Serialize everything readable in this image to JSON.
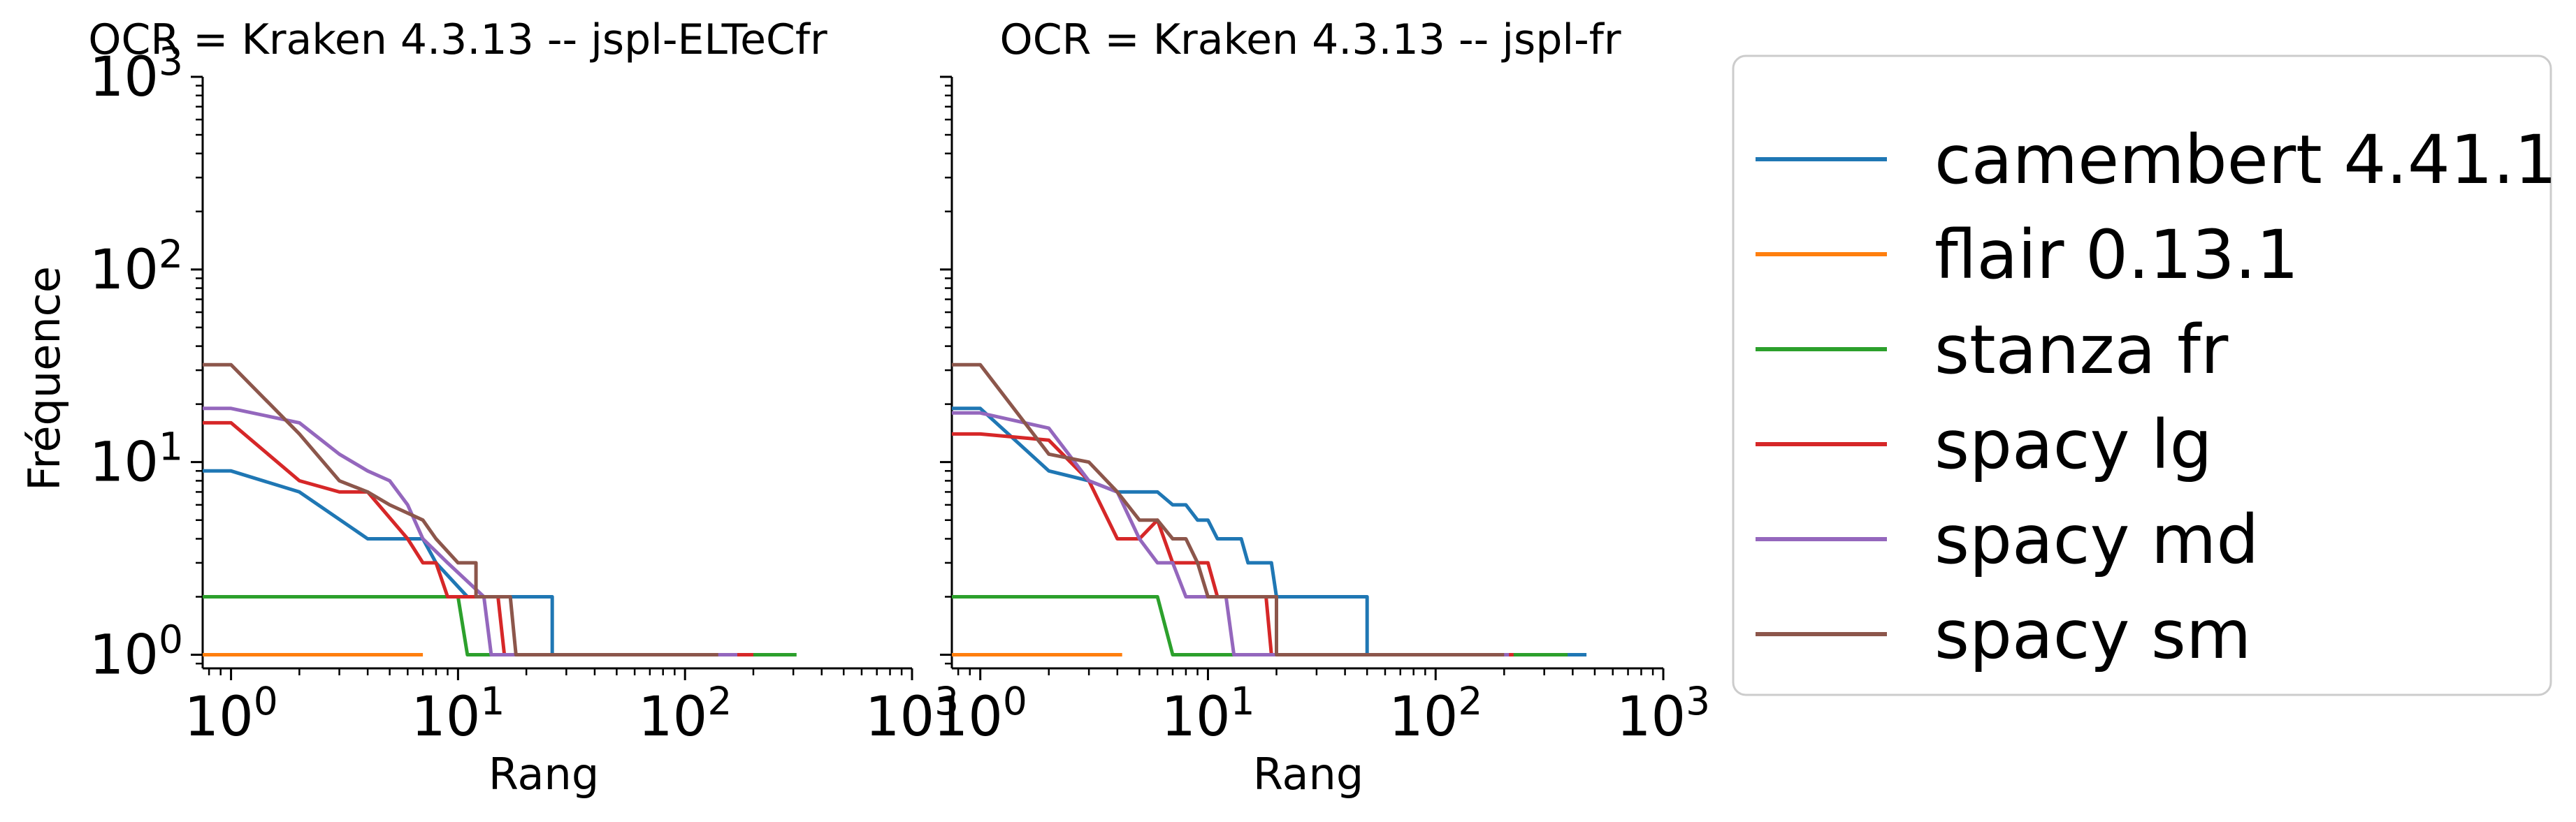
{
  "chart_data": [
    {
      "type": "line",
      "title": "OCR = Kraken 4.3.13 -- jspl-ELTeCfr",
      "xlabel": "Rang",
      "ylabel": "Fréquence",
      "xscale": "log",
      "yscale": "log",
      "xlim": [
        0.75,
        1000
      ],
      "ylim": [
        0.85,
        1000
      ],
      "x_ticks": [
        "10^0",
        "10^1",
        "10^2",
        "10^3"
      ],
      "y_ticks": [
        "10^0",
        "10^1",
        "10^2",
        "10^3"
      ],
      "grid": false,
      "series": [
        {
          "name": "camembert 4.41.1",
          "points": [
            [
              0.75,
              9
            ],
            [
              1,
              9
            ],
            [
              2,
              7
            ],
            [
              4,
              4
            ],
            [
              7,
              4
            ],
            [
              8,
              3
            ],
            [
              11,
              2
            ],
            [
              26,
              2
            ],
            [
              26,
              1
            ],
            [
              190,
              1
            ]
          ]
        },
        {
          "name": "flair 0.13.1",
          "points": [
            [
              0.75,
              1
            ],
            [
              7,
              1
            ]
          ]
        },
        {
          "name": "stanza fr",
          "points": [
            [
              0.75,
              2
            ],
            [
              10,
              2
            ],
            [
              11,
              1
            ],
            [
              310,
              1
            ]
          ]
        },
        {
          "name": "spacy lg",
          "points": [
            [
              0.75,
              16
            ],
            [
              1,
              16
            ],
            [
              2,
              8
            ],
            [
              3,
              7
            ],
            [
              4,
              7
            ],
            [
              6,
              4
            ],
            [
              7,
              3
            ],
            [
              8,
              3
            ],
            [
              9,
              2
            ],
            [
              15,
              2
            ],
            [
              16,
              1
            ],
            [
              200,
              1
            ]
          ]
        },
        {
          "name": "spacy md",
          "points": [
            [
              0.75,
              19
            ],
            [
              1,
              19
            ],
            [
              2,
              16
            ],
            [
              3,
              11
            ],
            [
              4,
              9
            ],
            [
              5,
              8
            ],
            [
              6,
              6
            ],
            [
              7,
              4
            ],
            [
              9,
              3
            ],
            [
              13,
              2
            ],
            [
              14,
              1
            ],
            [
              170,
              1
            ]
          ]
        },
        {
          "name": "spacy sm",
          "points": [
            [
              0.75,
              32
            ],
            [
              1,
              32
            ],
            [
              2,
              14
            ],
            [
              3,
              8
            ],
            [
              4,
              7
            ],
            [
              5,
              6
            ],
            [
              7,
              5
            ],
            [
              8,
              4
            ],
            [
              10,
              3
            ],
            [
              12,
              3
            ],
            [
              12,
              2
            ],
            [
              17,
              2
            ],
            [
              18,
              1
            ],
            [
              140,
              1
            ]
          ]
        }
      ]
    },
    {
      "type": "line",
      "title": "OCR = Kraken 4.3.13 -- jspl-fr",
      "xlabel": "Rang",
      "ylabel": "",
      "xscale": "log",
      "yscale": "log",
      "xlim": [
        0.75,
        1000
      ],
      "ylim": [
        0.85,
        1000
      ],
      "x_ticks": [
        "10^0",
        "10^1",
        "10^2",
        "10^3"
      ],
      "y_ticks": [],
      "grid": false,
      "series": [
        {
          "name": "camembert 4.41.1",
          "points": [
            [
              0.75,
              19
            ],
            [
              1,
              19
            ],
            [
              2,
              9
            ],
            [
              3,
              8
            ],
            [
              4,
              7
            ],
            [
              6,
              7
            ],
            [
              7,
              6
            ],
            [
              8,
              6
            ],
            [
              9,
              5
            ],
            [
              10,
              5
            ],
            [
              11,
              4
            ],
            [
              14,
              4
            ],
            [
              15,
              3
            ],
            [
              19,
              3
            ],
            [
              20,
              2
            ],
            [
              50,
              2
            ],
            [
              50,
              1
            ],
            [
              460,
              1
            ]
          ]
        },
        {
          "name": "flair 0.13.1",
          "points": [
            [
              0.75,
              1
            ],
            [
              4.2,
              1
            ]
          ]
        },
        {
          "name": "stanza fr",
          "points": [
            [
              0.75,
              2
            ],
            [
              6,
              2
            ],
            [
              7,
              1
            ],
            [
              380,
              1
            ]
          ]
        },
        {
          "name": "spacy lg",
          "points": [
            [
              0.75,
              14
            ],
            [
              1,
              14
            ],
            [
              2,
              13
            ],
            [
              3,
              8
            ],
            [
              4,
              4
            ],
            [
              5,
              4
            ],
            [
              6,
              5
            ],
            [
              7,
              3
            ],
            [
              10,
              3
            ],
            [
              11,
              2
            ],
            [
              18,
              2
            ],
            [
              19,
              1
            ],
            [
              220,
              1
            ]
          ]
        },
        {
          "name": "spacy md",
          "points": [
            [
              0.75,
              18
            ],
            [
              1,
              18
            ],
            [
              2,
              15
            ],
            [
              3,
              8
            ],
            [
              4,
              7
            ],
            [
              5,
              4
            ],
            [
              6,
              3
            ],
            [
              7,
              3
            ],
            [
              8,
              2
            ],
            [
              12,
              2
            ],
            [
              13,
              1
            ],
            [
              210,
              1
            ]
          ]
        },
        {
          "name": "spacy sm",
          "points": [
            [
              0.75,
              32
            ],
            [
              1,
              32
            ],
            [
              2,
              11
            ],
            [
              3,
              10
            ],
            [
              4,
              7
            ],
            [
              5,
              5
            ],
            [
              6,
              5
            ],
            [
              7,
              4
            ],
            [
              8,
              4
            ],
            [
              9,
              3
            ],
            [
              10,
              2
            ],
            [
              20,
              2
            ],
            [
              20,
              1
            ],
            [
              200,
              1
            ]
          ]
        }
      ]
    }
  ],
  "legend": {
    "placement": "right",
    "items": [
      {
        "label": "camembert 4.41.1",
        "color": "#1f77b4"
      },
      {
        "label": "flair 0.13.1",
        "color": "#ff7f0e"
      },
      {
        "label": "stanza fr",
        "color": "#2ca02c"
      },
      {
        "label": "spacy lg",
        "color": "#d62728"
      },
      {
        "label": "spacy md",
        "color": "#9467bd"
      },
      {
        "label": "spacy sm",
        "color": "#8c564b"
      }
    ]
  }
}
